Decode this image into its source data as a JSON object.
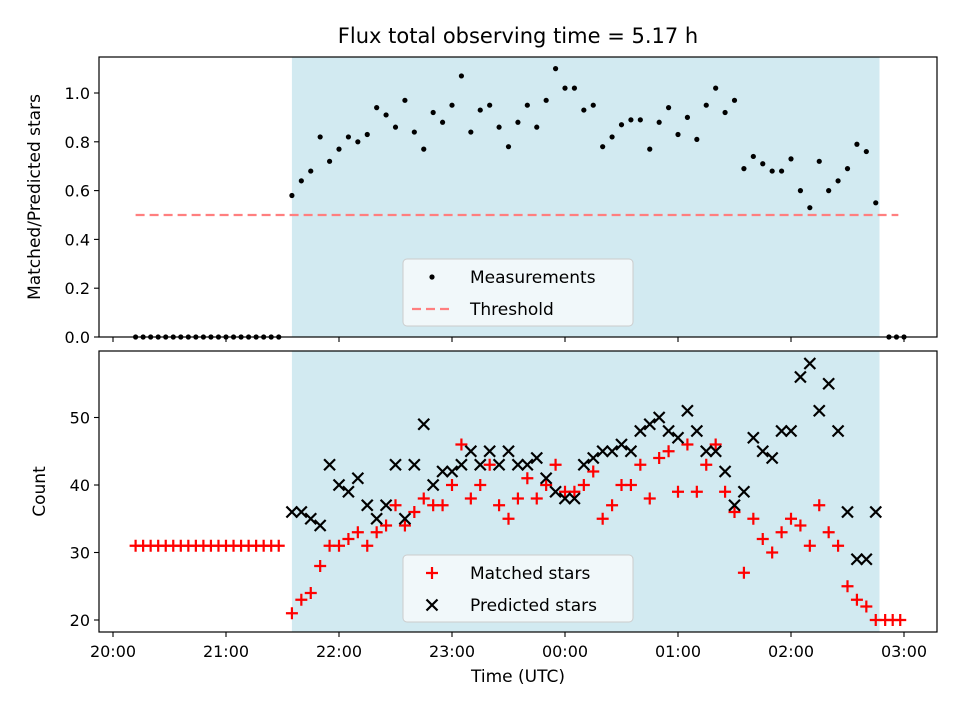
{
  "figure": {
    "title": "Flux total observing time = 5.17 h"
  },
  "chart_data": [
    {
      "type": "scatter",
      "title": "Flux total observing time = 5.17 h",
      "ylabel": "Matched/Predicted stars",
      "xlabel": "",
      "ylim": [
        0,
        1.15
      ],
      "xlim": [
        "20:00",
        "03:00"
      ],
      "yticks": [
        0.0,
        0.2,
        0.4,
        0.6,
        0.8,
        1.0
      ],
      "ytick_labels": [
        "0.0",
        "0.2",
        "0.4",
        "0.6",
        "0.8",
        "1.0"
      ],
      "shaded_region": [
        "21:35",
        "02:47"
      ],
      "shaded_color": "#add8e6",
      "legend": {
        "placement": "lower center",
        "entries": [
          "Measurements",
          "Threshold"
        ]
      },
      "series": [
        {
          "name": "Measurements",
          "marker": "dot",
          "color": "#000000",
          "points": [
            [
              "20:12",
              0
            ],
            [
              "20:16",
              0
            ],
            [
              "20:20",
              0
            ],
            [
              "20:24",
              0
            ],
            [
              "20:28",
              0
            ],
            [
              "20:32",
              0
            ],
            [
              "20:36",
              0
            ],
            [
              "20:40",
              0
            ],
            [
              "20:44",
              0
            ],
            [
              "20:48",
              0
            ],
            [
              "20:52",
              0
            ],
            [
              "20:56",
              0
            ],
            [
              "21:00",
              0
            ],
            [
              "21:04",
              0
            ],
            [
              "21:08",
              0
            ],
            [
              "21:12",
              0
            ],
            [
              "21:16",
              0
            ],
            [
              "21:20",
              0
            ],
            [
              "21:24",
              0
            ],
            [
              "21:28",
              0
            ],
            [
              "21:35",
              0.58
            ],
            [
              "21:40",
              0.64
            ],
            [
              "21:45",
              0.68
            ],
            [
              "21:50",
              0.82
            ],
            [
              "21:55",
              0.72
            ],
            [
              "22:00",
              0.77
            ],
            [
              "22:05",
              0.82
            ],
            [
              "22:10",
              0.8
            ],
            [
              "22:15",
              0.83
            ],
            [
              "22:20",
              0.94
            ],
            [
              "22:25",
              0.91
            ],
            [
              "22:30",
              0.86
            ],
            [
              "22:35",
              0.97
            ],
            [
              "22:40",
              0.84
            ],
            [
              "22:45",
              0.77
            ],
            [
              "22:50",
              0.92
            ],
            [
              "22:55",
              0.88
            ],
            [
              "23:00",
              0.95
            ],
            [
              "23:05",
              1.07
            ],
            [
              "23:10",
              0.84
            ],
            [
              "23:15",
              0.93
            ],
            [
              "23:20",
              0.95
            ],
            [
              "23:25",
              0.86
            ],
            [
              "23:30",
              0.78
            ],
            [
              "23:35",
              0.88
            ],
            [
              "23:40",
              0.95
            ],
            [
              "23:45",
              0.86
            ],
            [
              "23:50",
              0.97
            ],
            [
              "23:55",
              1.1
            ],
            [
              "00:00",
              1.02
            ],
            [
              "00:05",
              1.02
            ],
            [
              "00:10",
              0.93
            ],
            [
              "00:15",
              0.95
            ],
            [
              "00:20",
              0.78
            ],
            [
              "00:25",
              0.82
            ],
            [
              "00:30",
              0.87
            ],
            [
              "00:35",
              0.89
            ],
            [
              "00:40",
              0.89
            ],
            [
              "00:45",
              0.77
            ],
            [
              "00:50",
              0.88
            ],
            [
              "00:55",
              0.94
            ],
            [
              "01:00",
              0.83
            ],
            [
              "01:05",
              0.9
            ],
            [
              "01:10",
              0.81
            ],
            [
              "01:15",
              0.95
            ],
            [
              "01:20",
              1.02
            ],
            [
              "01:25",
              0.92
            ],
            [
              "01:30",
              0.97
            ],
            [
              "01:35",
              0.69
            ],
            [
              "01:40",
              0.74
            ],
            [
              "01:45",
              0.71
            ],
            [
              "01:50",
              0.68
            ],
            [
              "01:55",
              0.68
            ],
            [
              "02:00",
              0.73
            ],
            [
              "02:05",
              0.6
            ],
            [
              "02:10",
              0.53
            ],
            [
              "02:15",
              0.72
            ],
            [
              "02:20",
              0.6
            ],
            [
              "02:25",
              0.64
            ],
            [
              "02:30",
              0.69
            ],
            [
              "02:35",
              0.79
            ],
            [
              "02:40",
              0.76
            ],
            [
              "02:45",
              0.55
            ],
            [
              "02:52",
              0
            ],
            [
              "02:56",
              0
            ],
            [
              "03:00",
              0
            ]
          ]
        },
        {
          "name": "Threshold",
          "style": "dashed",
          "color": "#ff7f7f",
          "points": [
            [
              "20:12",
              0.5
            ],
            [
              "02:57",
              0.5
            ]
          ]
        }
      ]
    },
    {
      "type": "scatter",
      "title": "",
      "ylabel": "Count",
      "xlabel": "Time (UTC)",
      "ylim": [
        18,
        59.5
      ],
      "xlim": [
        "20:00",
        "03:00"
      ],
      "yticks": [
        20,
        30,
        40,
        50
      ],
      "ytick_labels": [
        "20",
        "30",
        "40",
        "50"
      ],
      "xticks": [
        "20:00",
        "21:00",
        "22:00",
        "23:00",
        "00:00",
        "01:00",
        "02:00",
        "03:00"
      ],
      "xtick_labels": [
        "20:00",
        "21:00",
        "22:00",
        "23:00",
        "00:00",
        "01:00",
        "02:00",
        "03:00"
      ],
      "shaded_region": [
        "21:35",
        "02:47"
      ],
      "shaded_color": "#add8e6",
      "legend": {
        "placement": "lower center",
        "entries": [
          "Matched stars",
          "Predicted stars"
        ]
      },
      "series": [
        {
          "name": "Matched stars",
          "marker": "plus",
          "color": "#ff0000",
          "points": [
            [
              "20:12",
              31
            ],
            [
              "20:16",
              31
            ],
            [
              "20:20",
              31
            ],
            [
              "20:24",
              31
            ],
            [
              "20:28",
              31
            ],
            [
              "20:32",
              31
            ],
            [
              "20:36",
              31
            ],
            [
              "20:40",
              31
            ],
            [
              "20:44",
              31
            ],
            [
              "20:48",
              31
            ],
            [
              "20:52",
              31
            ],
            [
              "20:56",
              31
            ],
            [
              "21:00",
              31
            ],
            [
              "21:04",
              31
            ],
            [
              "21:08",
              31
            ],
            [
              "21:12",
              31
            ],
            [
              "21:16",
              31
            ],
            [
              "21:20",
              31
            ],
            [
              "21:24",
              31
            ],
            [
              "21:28",
              31
            ],
            [
              "21:35",
              21
            ],
            [
              "21:40",
              23
            ],
            [
              "21:45",
              24
            ],
            [
              "21:50",
              28
            ],
            [
              "21:55",
              31
            ],
            [
              "22:00",
              31
            ],
            [
              "22:05",
              32
            ],
            [
              "22:10",
              33
            ],
            [
              "22:15",
              31
            ],
            [
              "22:20",
              33
            ],
            [
              "22:25",
              34
            ],
            [
              "22:30",
              37
            ],
            [
              "22:35",
              34
            ],
            [
              "22:40",
              36
            ],
            [
              "22:45",
              38
            ],
            [
              "22:50",
              37
            ],
            [
              "22:55",
              37
            ],
            [
              "23:00",
              40
            ],
            [
              "23:05",
              46
            ],
            [
              "23:10",
              38
            ],
            [
              "23:15",
              40
            ],
            [
              "23:20",
              43
            ],
            [
              "23:25",
              37
            ],
            [
              "23:30",
              35
            ],
            [
              "23:35",
              38
            ],
            [
              "23:40",
              41
            ],
            [
              "23:45",
              38
            ],
            [
              "23:50",
              40
            ],
            [
              "23:55",
              43
            ],
            [
              "00:00",
              39
            ],
            [
              "00:05",
              39
            ],
            [
              "00:10",
              40
            ],
            [
              "00:15",
              42
            ],
            [
              "00:20",
              35
            ],
            [
              "00:25",
              37
            ],
            [
              "00:30",
              40
            ],
            [
              "00:35",
              40
            ],
            [
              "00:40",
              43
            ],
            [
              "00:45",
              38
            ],
            [
              "00:50",
              44
            ],
            [
              "00:55",
              45
            ],
            [
              "01:00",
              39
            ],
            [
              "01:05",
              46
            ],
            [
              "01:10",
              39
            ],
            [
              "01:15",
              43
            ],
            [
              "01:20",
              46
            ],
            [
              "01:25",
              39
            ],
            [
              "01:30",
              36
            ],
            [
              "01:35",
              27
            ],
            [
              "01:40",
              35
            ],
            [
              "01:45",
              32
            ],
            [
              "01:50",
              30
            ],
            [
              "01:55",
              33
            ],
            [
              "02:00",
              35
            ],
            [
              "02:05",
              34
            ],
            [
              "02:10",
              31
            ],
            [
              "02:15",
              37
            ],
            [
              "02:20",
              33
            ],
            [
              "02:25",
              31
            ],
            [
              "02:30",
              25
            ],
            [
              "02:35",
              23
            ],
            [
              "02:40",
              22
            ],
            [
              "02:45",
              20
            ],
            [
              "02:50",
              20
            ],
            [
              "02:54",
              20
            ],
            [
              "02:58",
              20
            ]
          ]
        },
        {
          "name": "Predicted stars",
          "marker": "x",
          "color": "#000000",
          "points": [
            [
              "21:35",
              36
            ],
            [
              "21:40",
              36
            ],
            [
              "21:45",
              35
            ],
            [
              "21:50",
              34
            ],
            [
              "21:55",
              43
            ],
            [
              "22:00",
              40
            ],
            [
              "22:05",
              39
            ],
            [
              "22:10",
              41
            ],
            [
              "22:15",
              37
            ],
            [
              "22:20",
              35
            ],
            [
              "22:25",
              37
            ],
            [
              "22:30",
              43
            ],
            [
              "22:35",
              35
            ],
            [
              "22:40",
              43
            ],
            [
              "22:45",
              49
            ],
            [
              "22:50",
              40
            ],
            [
              "22:55",
              42
            ],
            [
              "23:00",
              42
            ],
            [
              "23:05",
              43
            ],
            [
              "23:10",
              45
            ],
            [
              "23:15",
              43
            ],
            [
              "23:20",
              45
            ],
            [
              "23:25",
              43
            ],
            [
              "23:30",
              45
            ],
            [
              "23:35",
              43
            ],
            [
              "23:40",
              43
            ],
            [
              "23:45",
              44
            ],
            [
              "23:50",
              41
            ],
            [
              "23:55",
              39
            ],
            [
              "00:00",
              38
            ],
            [
              "00:05",
              38
            ],
            [
              "00:10",
              43
            ],
            [
              "00:15",
              44
            ],
            [
              "00:20",
              45
            ],
            [
              "00:25",
              45
            ],
            [
              "00:30",
              46
            ],
            [
              "00:35",
              45
            ],
            [
              "00:40",
              48
            ],
            [
              "00:45",
              49
            ],
            [
              "00:50",
              50
            ],
            [
              "00:55",
              48
            ],
            [
              "01:00",
              47
            ],
            [
              "01:05",
              51
            ],
            [
              "01:10",
              48
            ],
            [
              "01:15",
              45
            ],
            [
              "01:20",
              45
            ],
            [
              "01:25",
              42
            ],
            [
              "01:30",
              37
            ],
            [
              "01:35",
              39
            ],
            [
              "01:40",
              47
            ],
            [
              "01:45",
              45
            ],
            [
              "01:50",
              44
            ],
            [
              "01:55",
              48
            ],
            [
              "02:00",
              48
            ],
            [
              "02:05",
              56
            ],
            [
              "02:10",
              58
            ],
            [
              "02:15",
              51
            ],
            [
              "02:20",
              55
            ],
            [
              "02:25",
              48
            ],
            [
              "02:30",
              36
            ],
            [
              "02:35",
              29
            ],
            [
              "02:40",
              29
            ],
            [
              "02:45",
              36
            ]
          ]
        }
      ]
    }
  ]
}
